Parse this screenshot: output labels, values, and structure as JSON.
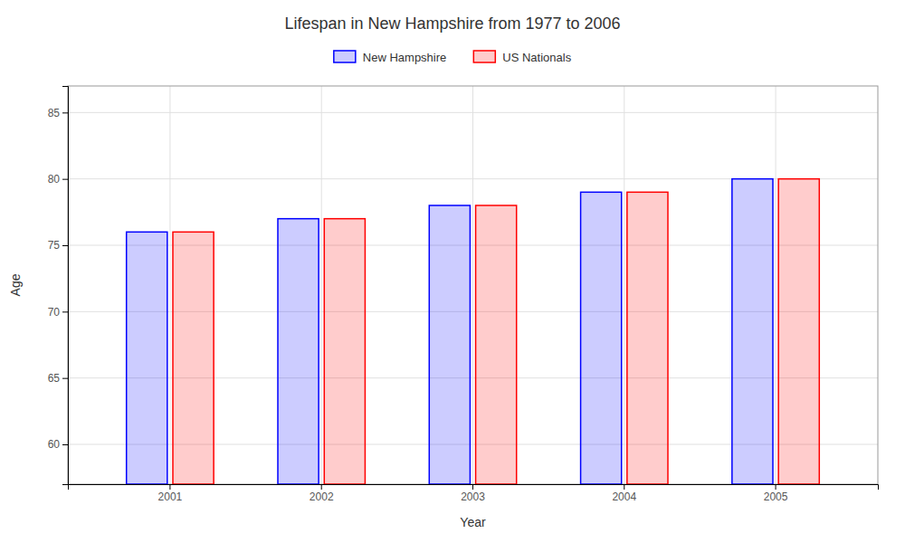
{
  "chart_data": {
    "type": "bar",
    "title": "Lifespan in New Hampshire from 1977 to 2006",
    "categories": [
      "2001",
      "2002",
      "2003",
      "2004",
      "2005"
    ],
    "series": [
      {
        "name": "New Hampshire",
        "color": "#0000ff",
        "values": [
          76,
          77,
          78,
          79,
          80
        ]
      },
      {
        "name": "US Nationals",
        "color": "#ff0000",
        "values": [
          76,
          77,
          78,
          79,
          80
        ]
      }
    ],
    "xlabel": "Year",
    "ylabel": "Age",
    "ylim": [
      57,
      87
    ],
    "yticks": [
      60,
      65,
      70,
      75,
      80,
      85
    ],
    "grid": true,
    "legend": "top"
  }
}
